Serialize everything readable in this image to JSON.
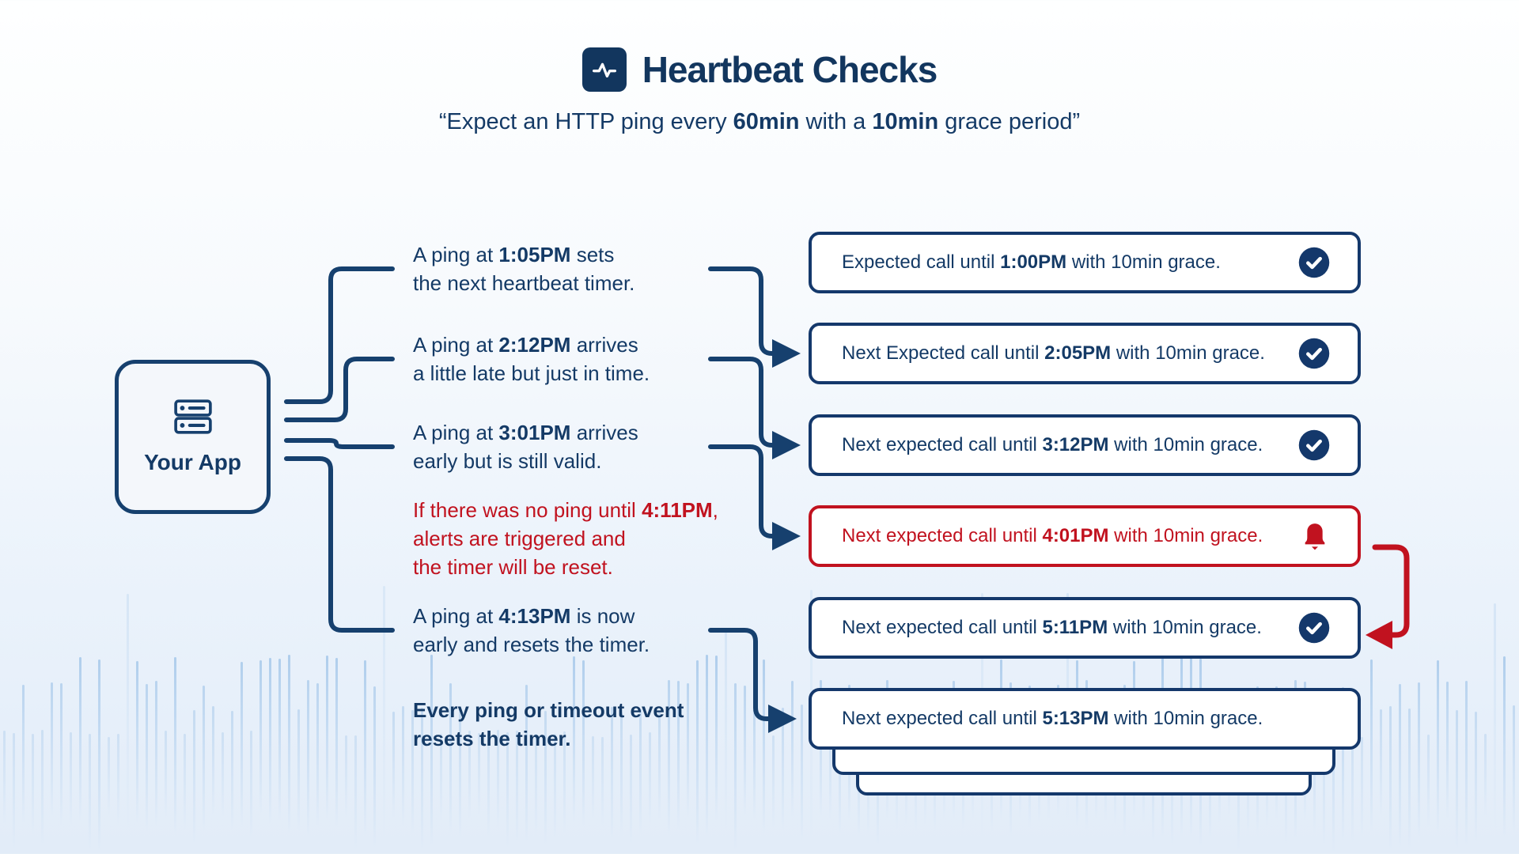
{
  "colors": {
    "navy": "#143a66",
    "navy_stroke": "#16406e",
    "red": "#c1121f",
    "box_background": "#ffffff",
    "app_box_background": "#f4f7fb",
    "waveform_line": "#a6c9ec",
    "page_background_bottom": "#e2ecf8"
  },
  "header": {
    "icon": "heartbeat-pulse-icon",
    "title": "Heartbeat Checks",
    "subtitle_segments": [
      {
        "t": "“Expect an HTTP ping every ",
        "b": false
      },
      {
        "t": "60min",
        "b": true
      },
      {
        "t": " with a ",
        "b": false
      },
      {
        "t": "10min",
        "b": true
      },
      {
        "t": " grace period”",
        "b": false
      }
    ]
  },
  "app": {
    "icon": "server-icon",
    "label": "Your App"
  },
  "notes": [
    {
      "lines": [
        [
          {
            "t": "A ping at ",
            "b": false
          },
          {
            "t": "1:05PM",
            "b": true
          },
          {
            "t": " sets",
            "b": false
          }
        ],
        [
          {
            "t": "the next heartbeat timer.",
            "b": false
          }
        ]
      ]
    },
    {
      "lines": [
        [
          {
            "t": "A ping at ",
            "b": false
          },
          {
            "t": "2:12PM",
            "b": true
          },
          {
            "t": " arrives",
            "b": false
          }
        ],
        [
          {
            "t": "a little late but just in time.",
            "b": false
          }
        ]
      ]
    },
    {
      "lines": [
        [
          {
            "t": "A ping at ",
            "b": false
          },
          {
            "t": "3:01PM",
            "b": true
          },
          {
            "t": " arrives",
            "b": false
          }
        ],
        [
          {
            "t": "early but is still valid.",
            "b": false
          }
        ]
      ]
    },
    {
      "lines": [
        [
          {
            "t": "If there was no ping until ",
            "b": false
          },
          {
            "t": "4:11PM",
            "b": true
          },
          {
            "t": ",",
            "b": false
          }
        ],
        [
          {
            "t": "alerts are triggered and",
            "b": false
          }
        ],
        [
          {
            "t": "the timer will be reset.",
            "b": false
          }
        ]
      ]
    },
    {
      "lines": [
        [
          {
            "t": "A ping at ",
            "b": false
          },
          {
            "t": "4:13PM",
            "b": true
          },
          {
            "t": " is now",
            "b": false
          }
        ],
        [
          {
            "t": "early and resets the timer.",
            "b": false
          }
        ]
      ]
    },
    {
      "lines": [
        [
          {
            "t": "Every ping or timeout event",
            "b": true
          }
        ],
        [
          {
            "t": "resets the timer.",
            "b": true
          }
        ]
      ]
    }
  ],
  "status_boxes": [
    {
      "variant": "ok",
      "icon": "check-circle-icon",
      "segments": [
        {
          "t": "Expected call until ",
          "b": false
        },
        {
          "t": "1:00PM",
          "b": true
        },
        {
          "t": " with 10min grace.",
          "b": false
        }
      ]
    },
    {
      "variant": "ok",
      "icon": "check-circle-icon",
      "segments": [
        {
          "t": "Next Expected call until ",
          "b": false
        },
        {
          "t": "2:05PM",
          "b": true
        },
        {
          "t": " with 10min grace.",
          "b": false
        }
      ]
    },
    {
      "variant": "ok",
      "icon": "check-circle-icon",
      "segments": [
        {
          "t": "Next expected call until ",
          "b": false
        },
        {
          "t": "3:12PM",
          "b": true
        },
        {
          "t": " with 10min grace.",
          "b": false
        }
      ]
    },
    {
      "variant": "alert",
      "icon": "bell-icon",
      "segments": [
        {
          "t": "Next expected call until ",
          "b": false
        },
        {
          "t": "4:01PM",
          "b": true
        },
        {
          "t": " with 10min grace.",
          "b": false
        }
      ]
    },
    {
      "variant": "ok",
      "icon": "check-circle-icon",
      "segments": [
        {
          "t": "Next expected call until ",
          "b": false
        },
        {
          "t": "5:11PM",
          "b": true
        },
        {
          "t": " with 10min grace.",
          "b": false
        }
      ]
    },
    {
      "variant": "plain",
      "icon": null,
      "segments": [
        {
          "t": "Next expected call until ",
          "b": false
        },
        {
          "t": "5:13PM",
          "b": true
        },
        {
          "t": " with 10min grace.",
          "b": false
        }
      ]
    }
  ]
}
